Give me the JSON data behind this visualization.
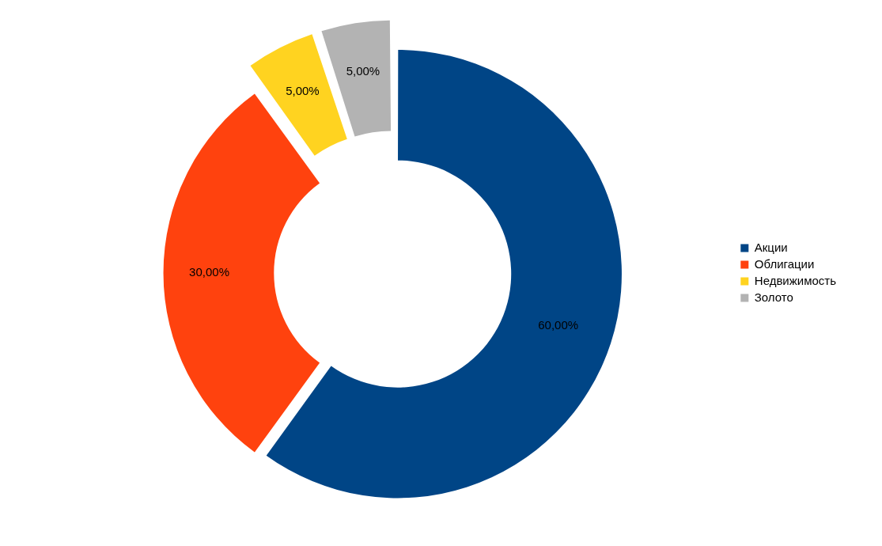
{
  "chart_data": {
    "type": "donut",
    "categories": [
      "Акции",
      "Облигации",
      "Недвижимость",
      "Золото"
    ],
    "values": [
      60,
      30,
      5,
      5
    ],
    "colors": [
      "#004586",
      "#ff420e",
      "#ffd320",
      "#b3b3b3"
    ],
    "value_labels": [
      "60,00%",
      "30,00%",
      "5,00%",
      "5,00%"
    ],
    "legend": "right"
  }
}
